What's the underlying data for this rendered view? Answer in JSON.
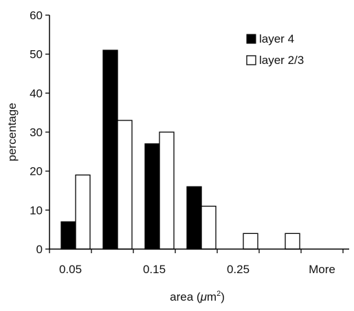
{
  "chart_data": {
    "type": "bar",
    "xlabel": "area (μm²)",
    "xlabel_parts": {
      "prefix": "area (",
      "mu": "μ",
      "unit": "m",
      "sup": "2",
      "suffix": ")"
    },
    "ylabel": "percentage",
    "ylim": [
      0,
      60
    ],
    "yticks": [
      0,
      10,
      20,
      30,
      40,
      50,
      60
    ],
    "x_tick_labels": [
      "0.05",
      "0.15",
      "0.25",
      "More"
    ],
    "bin_count": 6,
    "series": [
      {
        "name": "layer 4",
        "values": [
          7,
          51,
          27,
          16,
          0,
          0
        ],
        "fill": "#000000"
      },
      {
        "name": "layer 2/3",
        "values": [
          19,
          33,
          30,
          11,
          4,
          4
        ],
        "fill": "#ffffff"
      }
    ],
    "legend_position": "top-right",
    "grid": false
  },
  "colors": {
    "axis": "#000000",
    "bar_stroke": "#000000",
    "background": "#ffffff"
  }
}
